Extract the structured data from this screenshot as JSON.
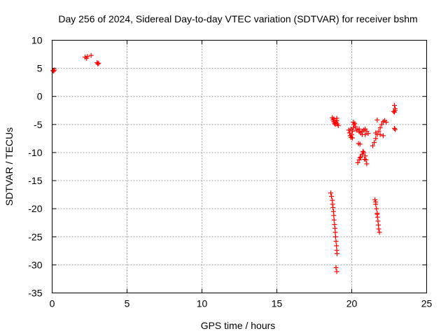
{
  "chart_data": {
    "type": "scatter",
    "title": "Day 256 of 2024, Sidereal Day-to-day VTEC variation (SDTVAR) for receiver bshm",
    "xlabel": "GPS time / hours",
    "ylabel": "SDTVAR / TECUs",
    "xlim": [
      0,
      25
    ],
    "ylim": [
      -35,
      10
    ],
    "xticks": [
      0,
      5,
      10,
      15,
      20,
      25
    ],
    "yticks": [
      10,
      5,
      0,
      -5,
      -10,
      -15,
      -20,
      -25,
      -30,
      -35
    ],
    "grid": true,
    "marker": "+",
    "marker_color": "#ff0000",
    "series": [
      {
        "name": "SDTVAR",
        "points": [
          [
            0.05,
            4.6
          ],
          [
            0.1,
            4.5
          ],
          [
            0.15,
            4.7
          ],
          [
            2.2,
            7.0
          ],
          [
            2.3,
            6.8
          ],
          [
            2.35,
            7.1
          ],
          [
            2.6,
            7.3
          ],
          [
            3.0,
            6.0
          ],
          [
            3.05,
            5.8
          ],
          [
            3.1,
            5.9
          ],
          [
            18.6,
            -17.2
          ],
          [
            18.65,
            -17.8
          ],
          [
            18.7,
            -18.5
          ],
          [
            18.72,
            -19.2
          ],
          [
            18.75,
            -19.8
          ],
          [
            18.78,
            -20.5
          ],
          [
            18.8,
            -21.2
          ],
          [
            18.82,
            -22.0
          ],
          [
            18.85,
            -22.8
          ],
          [
            18.88,
            -23.5
          ],
          [
            18.9,
            -24.2
          ],
          [
            18.92,
            -25.0
          ],
          [
            18.95,
            -25.8
          ],
          [
            18.98,
            -26.6
          ],
          [
            19.0,
            -27.4
          ],
          [
            19.02,
            -28.0
          ],
          [
            18.95,
            -30.5
          ],
          [
            19.0,
            -31.2
          ],
          [
            18.7,
            -3.8
          ],
          [
            18.75,
            -4.2
          ],
          [
            18.8,
            -4.5
          ],
          [
            18.85,
            -4.8
          ],
          [
            18.9,
            -5.0
          ],
          [
            18.95,
            -4.6
          ],
          [
            19.0,
            -4.3
          ],
          [
            19.05,
            -4.9
          ],
          [
            19.1,
            -5.2
          ],
          [
            18.8,
            -4.0
          ],
          [
            19.0,
            -3.9
          ],
          [
            19.8,
            -6.0
          ],
          [
            19.85,
            -6.5
          ],
          [
            19.9,
            -7.0
          ],
          [
            19.95,
            -7.3
          ],
          [
            20.0,
            -6.8
          ],
          [
            20.05,
            -6.2
          ],
          [
            20.1,
            -5.6
          ],
          [
            20.15,
            -5.0
          ],
          [
            20.2,
            -4.8
          ],
          [
            20.25,
            -5.4
          ],
          [
            20.3,
            -6.0
          ],
          [
            19.95,
            -5.8
          ],
          [
            20.05,
            -7.4
          ],
          [
            20.1,
            -4.6
          ],
          [
            20.4,
            -6.0
          ],
          [
            20.5,
            -6.3
          ],
          [
            20.6,
            -6.5
          ],
          [
            20.7,
            -6.2
          ],
          [
            20.8,
            -6.0
          ],
          [
            20.9,
            -5.8
          ],
          [
            21.0,
            -6.2
          ],
          [
            21.1,
            -6.6
          ],
          [
            20.5,
            -5.8
          ],
          [
            20.7,
            -6.8
          ],
          [
            20.9,
            -6.8
          ],
          [
            20.45,
            -8.4
          ],
          [
            20.55,
            -8.5
          ],
          [
            20.4,
            -11.8
          ],
          [
            20.5,
            -11.3
          ],
          [
            20.6,
            -10.8
          ],
          [
            20.7,
            -10.3
          ],
          [
            20.8,
            -10.0
          ],
          [
            20.9,
            -10.6
          ],
          [
            20.95,
            -11.3
          ],
          [
            21.0,
            -12.0
          ],
          [
            20.55,
            -10.9
          ],
          [
            20.75,
            -9.8
          ],
          [
            20.85,
            -11.2
          ],
          [
            21.4,
            -8.8
          ],
          [
            21.5,
            -8.2
          ],
          [
            21.6,
            -7.5
          ],
          [
            21.7,
            -6.8
          ],
          [
            21.8,
            -6.2
          ],
          [
            21.9,
            -5.6
          ],
          [
            22.0,
            -5.0
          ],
          [
            22.1,
            -4.5
          ],
          [
            22.2,
            -4.3
          ],
          [
            22.3,
            -4.6
          ],
          [
            21.6,
            -6.5
          ],
          [
            21.9,
            -6.8
          ],
          [
            22.1,
            -7.0
          ],
          [
            21.7,
            -4.2
          ],
          [
            21.55,
            -18.4
          ],
          [
            21.6,
            -19.2
          ],
          [
            21.65,
            -20.0
          ],
          [
            21.7,
            -20.8
          ],
          [
            21.72,
            -21.5
          ],
          [
            21.75,
            -22.2
          ],
          [
            21.78,
            -22.9
          ],
          [
            21.8,
            -23.6
          ],
          [
            21.85,
            -24.2
          ],
          [
            21.6,
            -18.8
          ],
          [
            21.7,
            -21.0
          ],
          [
            22.85,
            -1.6
          ],
          [
            22.9,
            -2.2
          ],
          [
            22.85,
            -2.8
          ],
          [
            22.9,
            -2.5
          ],
          [
            22.8,
            -2.7
          ],
          [
            22.85,
            -5.7
          ],
          [
            22.9,
            -5.9
          ]
        ]
      }
    ]
  }
}
